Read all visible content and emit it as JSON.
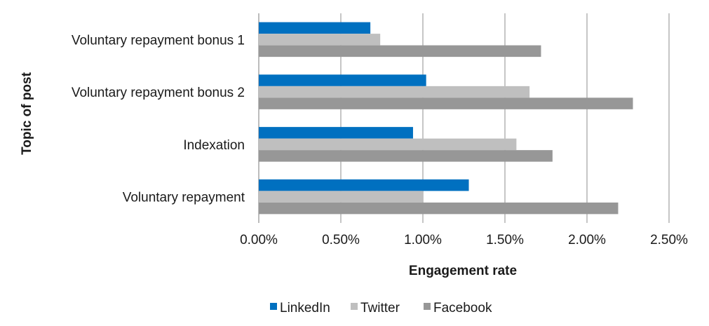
{
  "chart_data": {
    "type": "bar",
    "orientation": "horizontal",
    "categories": [
      "Voluntary repayment bonus 1",
      "Voluntary repayment bonus 2",
      "Indexation",
      "Voluntary repayment"
    ],
    "series": [
      {
        "name": "LinkedIn",
        "color": "#0070c0",
        "values": [
          0.68,
          1.02,
          0.94,
          1.28
        ]
      },
      {
        "name": "Twitter",
        "color": "#bfbfbf",
        "values": [
          0.74,
          1.65,
          1.57,
          1.0
        ]
      },
      {
        "name": "Facebook",
        "color": "#979797",
        "values": [
          1.72,
          2.28,
          1.79,
          2.19
        ]
      }
    ],
    "x_ticks": [
      "0.00%",
      "0.50%",
      "1.00%",
      "1.50%",
      "2.00%",
      "2.50%"
    ],
    "xlim": [
      0,
      2.5
    ],
    "xlabel": "Engagement rate",
    "ylabel": "Topic of post",
    "grid": "vertical",
    "legend_position": "bottom"
  }
}
